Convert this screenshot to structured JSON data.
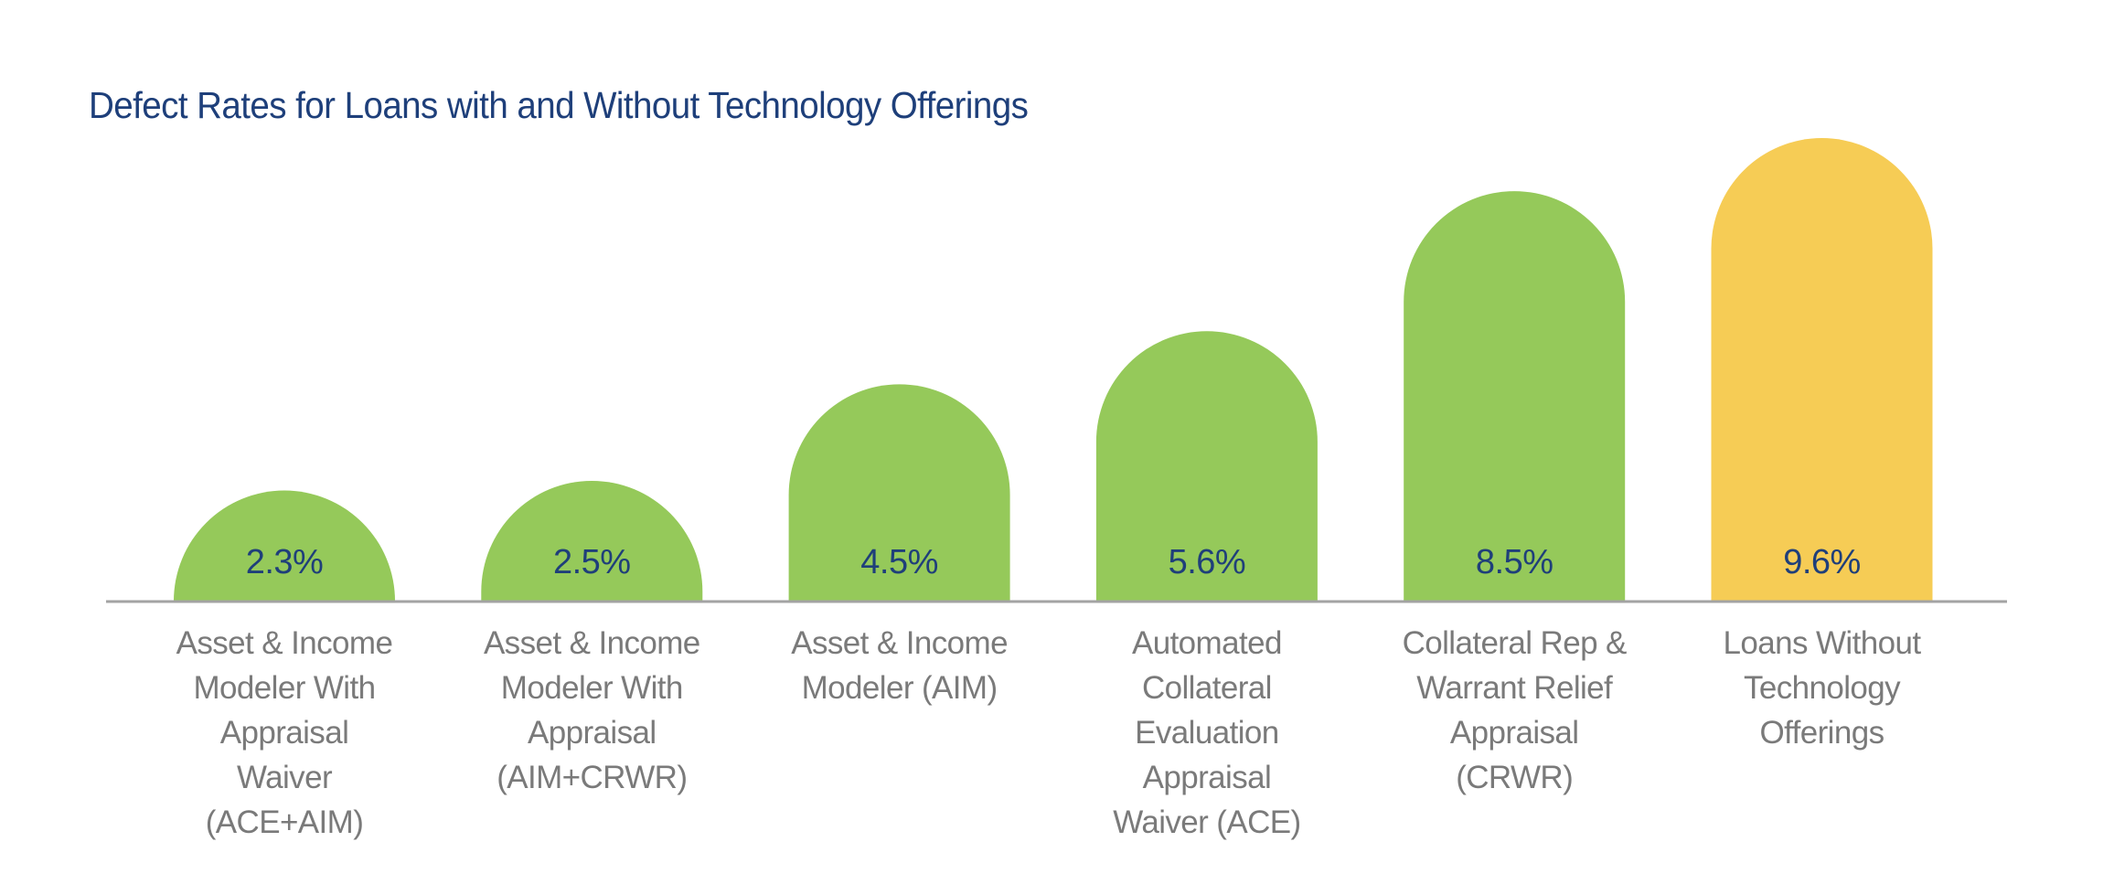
{
  "chart_data": {
    "type": "bar",
    "title": "Defect Rates for Loans with and Without Technology Offerings",
    "xlabel": "",
    "ylabel": "",
    "ylim": [
      0,
      9.6
    ],
    "grid": false,
    "legend": "none",
    "value_suffix": "%",
    "categories": [
      "Asset & Income Modeler With Appraisal Waiver (ACE+AIM)",
      "Asset & Income Modeler With Appraisal (AIM+CRWR)",
      "Asset & Income Modeler (AIM)",
      "Automated Collateral Evaluation Appraisal Waiver (ACE)",
      "Collateral Rep & Warrant Relief Appraisal (CRWR)",
      "Loans Without Technology Offerings"
    ],
    "category_lines": [
      [
        "Asset & Income",
        "Modeler With",
        "Appraisal",
        "Waiver",
        "(ACE+AIM)"
      ],
      [
        "Asset & Income",
        "Modeler With",
        "Appraisal",
        "(AIM+CRWR)"
      ],
      [
        "Asset & Income",
        "Modeler (AIM)"
      ],
      [
        "Automated",
        "Collateral",
        "Evaluation",
        "Appraisal",
        "Waiver (ACE)"
      ],
      [
        "Collateral Rep &",
        "Warrant Relief",
        "Appraisal",
        "(CRWR)"
      ],
      [
        "Loans Without",
        "Technology",
        "Offerings"
      ]
    ],
    "values": [
      2.3,
      2.5,
      4.5,
      5.6,
      8.5,
      9.6
    ],
    "value_labels": [
      "2.3%",
      "2.5%",
      "4.5%",
      "5.6%",
      "8.5%",
      "9.6%"
    ],
    "bar_colors": [
      "#95c95a",
      "#95c95a",
      "#95c95a",
      "#95c95a",
      "#95c95a",
      "#f6cc55"
    ]
  },
  "colors": {
    "title": "#1e3f7a",
    "value_label": "#1f3f7a",
    "axis_line": "#a3a3a3",
    "category_label": "#7a7a7a",
    "with_technology": "#95c95a",
    "without_technology": "#f6cc55"
  }
}
